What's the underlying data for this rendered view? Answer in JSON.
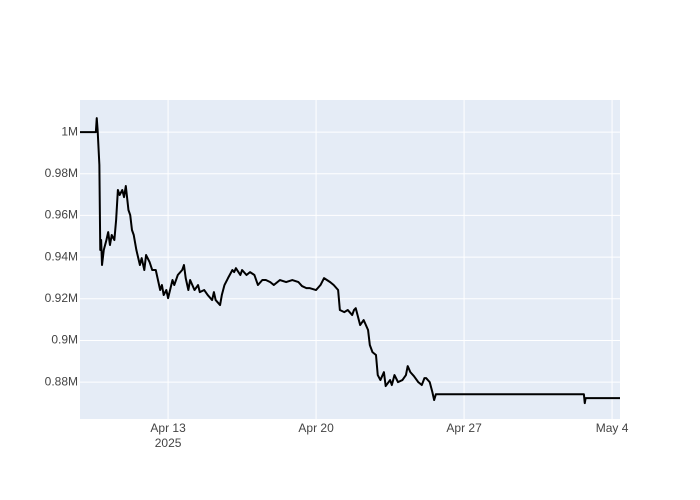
{
  "chart_data": {
    "type": "line",
    "color": "#000000",
    "grid": true,
    "xlim": [
      "2025-04-08T20:00",
      "2025-05-04T09:00"
    ],
    "xticks": [
      {
        "value": "2025-04-13",
        "label": "Apr 13"
      },
      {
        "value": "2025-04-20",
        "label": "Apr 20"
      },
      {
        "value": "2025-04-27",
        "label": "Apr 27"
      },
      {
        "value": "2025-05-04",
        "label": "May 4"
      }
    ],
    "x_year_label": "2025",
    "ylim": [
      862300,
      1015400
    ],
    "yticks": [
      {
        "value": 880000,
        "label": "0.88M"
      },
      {
        "value": 900000,
        "label": "0.9M"
      },
      {
        "value": 920000,
        "label": "0.92M"
      },
      {
        "value": 940000,
        "label": "0.94M"
      },
      {
        "value": 960000,
        "label": "0.96M"
      },
      {
        "value": 980000,
        "label": "0.98M"
      },
      {
        "value": 1000000,
        "label": "1M"
      }
    ],
    "x": [
      "2025-04-08T20:00",
      "2025-04-09T14:00",
      "2025-04-09T15:00",
      "2025-04-09T16:00",
      "2025-04-09T18:00",
      "2025-04-09T19:00",
      "2025-04-09T20:00",
      "2025-04-09T21:00",
      "2025-04-09T23:00",
      "2025-04-10T02:00",
      "2025-04-10T04:00",
      "2025-04-10T06:00",
      "2025-04-10T08:00",
      "2025-04-10T11:00",
      "2025-04-10T13:00",
      "2025-04-10T15:00",
      "2025-04-10T17:00",
      "2025-04-10T20:00",
      "2025-04-10T22:00",
      "2025-04-11T00:00",
      "2025-04-11T03:00",
      "2025-04-11T05:00",
      "2025-04-11T07:00",
      "2025-04-11T09:00",
      "2025-04-11T12:00",
      "2025-04-11T16:00",
      "2025-04-11T18:00",
      "2025-04-11T21:00",
      "2025-04-11T23:00",
      "2025-04-12T03:00",
      "2025-04-12T06:00",
      "2025-04-12T10:00",
      "2025-04-12T15:00",
      "2025-04-12T17:00",
      "2025-04-12T19:00",
      "2025-04-12T22:00",
      "2025-04-13T00:00",
      "2025-04-13T05:00",
      "2025-04-13T07:00",
      "2025-04-13T11:00",
      "2025-04-13T16:00",
      "2025-04-13T18:00",
      "2025-04-13T20:00",
      "2025-04-13T23:00",
      "2025-04-14T01:00",
      "2025-04-14T06:00",
      "2025-04-14T10:00",
      "2025-04-14T12:00",
      "2025-04-14T17:00",
      "2025-04-14T21:00",
      "2025-04-15T02:00",
      "2025-04-15T04:00",
      "2025-04-15T06:00",
      "2025-04-15T11:00",
      "2025-04-15T13:00",
      "2025-04-15T16:00",
      "2025-04-15T20:00",
      "2025-04-16T01:00",
      "2025-04-16T03:00",
      "2025-04-16T05:00",
      "2025-04-16T10:00",
      "2025-04-16T12:00",
      "2025-04-16T17:00",
      "2025-04-16T21:00",
      "2025-04-17T02:00",
      "2025-04-17T06:00",
      "2025-04-17T11:00",
      "2025-04-17T15:00",
      "2025-04-17T20:00",
      "2025-04-18T00:00",
      "2025-04-18T07:00",
      "2025-04-18T14:00",
      "2025-04-18T21:00",
      "2025-04-19T04:00",
      "2025-04-19T08:00",
      "2025-04-19T13:00",
      "2025-04-19T17:00",
      "2025-04-20T00:00",
      "2025-04-20T05:00",
      "2025-04-20T09:00",
      "2025-04-20T16:00",
      "2025-04-20T20:00",
      "2025-04-21T01:00",
      "2025-04-21T03:00",
      "2025-04-21T08:00",
      "2025-04-21T12:00",
      "2025-04-21T17:00",
      "2025-04-21T19:00",
      "2025-04-21T21:00",
      "2025-04-22T02:00",
      "2025-04-22T06:00",
      "2025-04-22T11:00",
      "2025-04-22T13:00",
      "2025-04-22T16:00",
      "2025-04-22T20:00",
      "2025-04-22T22:00",
      "2025-04-23T01:00",
      "2025-04-23T05:00",
      "2025-04-23T07:00",
      "2025-04-23T12:00",
      "2025-04-23T14:00",
      "2025-04-23T17:00",
      "2025-04-23T21:00",
      "2025-04-24T02:00",
      "2025-04-24T06:00",
      "2025-04-24T08:00",
      "2025-04-24T11:00",
      "2025-04-24T15:00",
      "2025-04-24T20:00",
      "2025-04-25T00:00",
      "2025-04-25T03:00",
      "2025-04-25T05:00",
      "2025-04-25T09:00",
      "2025-04-25T12:00",
      "2025-04-25T14:00",
      "2025-04-25T16:00",
      "2025-04-25T21:00",
      "2025-05-02T16:00",
      "2025-05-02T17:00",
      "2025-05-02T18:00",
      "2025-05-04T09:00"
    ],
    "values": [
      1000000,
      1000000,
      1006700,
      1001000,
      984200,
      943400,
      948200,
      936200,
      943400,
      948200,
      952000,
      945800,
      950600,
      948200,
      957800,
      972200,
      969800,
      972200,
      968800,
      974100,
      962600,
      960200,
      953000,
      950600,
      943400,
      936200,
      939500,
      933800,
      941000,
      937600,
      933800,
      933800,
      924200,
      926600,
      921800,
      924200,
      920300,
      929000,
      926600,
      931400,
      933800,
      936200,
      929900,
      924200,
      929000,
      924200,
      926600,
      923200,
      924200,
      921800,
      919400,
      923200,
      919400,
      917000,
      921800,
      926600,
      929900,
      933800,
      932800,
      934700,
      931400,
      933800,
      931400,
      932800,
      931400,
      926600,
      929000,
      929000,
      928000,
      926600,
      929000,
      928000,
      929000,
      928000,
      926100,
      925100,
      925100,
      924200,
      926600,
      929900,
      928000,
      926600,
      924200,
      914600,
      913600,
      914600,
      912200,
      914600,
      915500,
      907400,
      909800,
      905000,
      897800,
      894400,
      893000,
      883400,
      881000,
      884800,
      878100,
      881000,
      878600,
      883400,
      880000,
      881000,
      883400,
      887700,
      884800,
      882900,
      880000,
      878600,
      881900,
      881900,
      880000,
      875200,
      871400,
      874200,
      874200,
      874200,
      869900,
      872300,
      872300
    ]
  }
}
